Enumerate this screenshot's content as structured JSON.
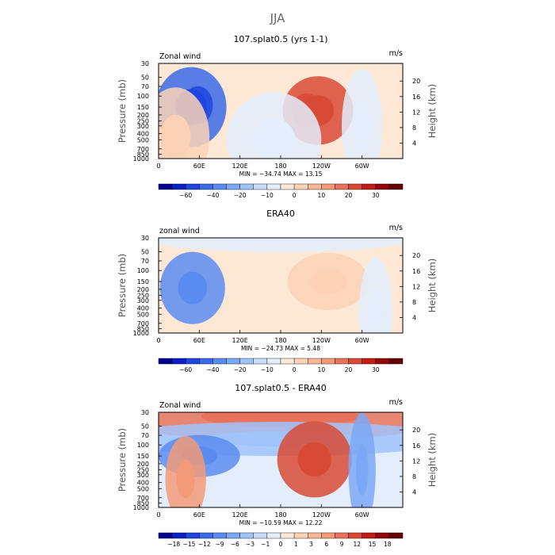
{
  "title": "JJA",
  "colors": {
    "levels": [
      "#00008f",
      "#0a1fc4",
      "#2045e0",
      "#3b6ae8",
      "#5a8cf0",
      "#7ba8f5",
      "#a0c3fa",
      "#c8ddfb",
      "#e3edfb",
      "#fde8d6",
      "#fbd2b6",
      "#f8b898",
      "#f29a78",
      "#e8735a",
      "#d84a35",
      "#c01e15",
      "#900808",
      "#660000"
    ]
  },
  "chart_data": [
    {
      "type": "heatmap",
      "title": "107.splat0.5 (yrs 1-1)",
      "variable": "Zonal wind",
      "units": "m/s",
      "ylabel": "Pressure (mb)",
      "y2label": "Height (km)",
      "x_ticks": [
        "0",
        "60E",
        "120E",
        "180",
        "120W",
        "60W"
      ],
      "y_ticks": [
        "30",
        "50",
        "70",
        "100",
        "150",
        "200",
        "250",
        "300",
        "400",
        "500",
        "700",
        "850",
        "1000"
      ],
      "y2_ticks": [
        "20",
        "16",
        "12",
        "8",
        "4"
      ],
      "min_max": "MIN = −34.74   MAX =  13.15",
      "colorbar_ticks": [
        "−60",
        "−40",
        "−20",
        "−10",
        "0",
        "10",
        "20",
        "30"
      ],
      "background_level": 9,
      "features": [
        {
          "lon": 48,
          "p": 150,
          "rx": 52,
          "ry": 0.42,
          "min": 3,
          "core": 2
        },
        {
          "lon": 58,
          "p": 140,
          "rx": 22,
          "ry": 0.2,
          "min": 2,
          "core": 2
        },
        {
          "lon": 235,
          "p": 170,
          "rx": 52,
          "ry": 0.36,
          "min": 14,
          "core": 14
        },
        {
          "lon": 218,
          "p": 170,
          "rx": 22,
          "ry": 0.18,
          "min": 14,
          "core": 14
        },
        {
          "lon": 25,
          "p": 450,
          "rx": 50,
          "ry": 0.52,
          "min": 10,
          "core": 10
        },
        {
          "lon": 170,
          "p": 500,
          "rx": 70,
          "ry": 0.5,
          "min": 8,
          "core": 8
        },
        {
          "lon": 300,
          "p": 300,
          "rx": 30,
          "ry": 0.6,
          "min": 8,
          "core": 8
        }
      ]
    },
    {
      "type": "heatmap",
      "title": "ERA40",
      "variable": "zonal wind",
      "units": "m/s",
      "ylabel": "Pressure (mb)",
      "y2label": "Height (km)",
      "x_ticks": [
        "0",
        "60E",
        "120E",
        "180",
        "120W",
        "60W"
      ],
      "y_ticks": [
        "30",
        "50",
        "70",
        "100",
        "150",
        "200",
        "250",
        "300",
        "400",
        "500",
        "700",
        "850",
        "1000"
      ],
      "y2_ticks": [
        "20",
        "16",
        "12",
        "8",
        "4"
      ],
      "min_max": "MIN = −24.73   MAX =   5.48",
      "colorbar_ticks": [
        "−60",
        "−40",
        "−20",
        "−10",
        "0",
        "10",
        "20",
        "30"
      ],
      "background_level": 9,
      "features": [
        {
          "lon": 50,
          "p": 190,
          "rx": 48,
          "ry": 0.38,
          "min": 4,
          "core": 4
        },
        {
          "lon": 180,
          "p": 30,
          "rx": 200,
          "ry": 0.15,
          "min": 8,
          "core": 8
        },
        {
          "lon": 250,
          "p": 150,
          "rx": 60,
          "ry": 0.3,
          "min": 10,
          "core": 10
        },
        {
          "lon": 320,
          "p": 500,
          "rx": 25,
          "ry": 0.6,
          "min": 8,
          "core": 8
        }
      ]
    },
    {
      "type": "heatmap",
      "title": "107.splat0.5 - ERA40",
      "variable": "Zonal wind",
      "units": "m/s",
      "ylabel": "Pressure (mb)",
      "y2label": "Height (km)",
      "x_ticks": [
        "0",
        "60E",
        "120E",
        "180",
        "120W",
        "60W"
      ],
      "y_ticks": [
        "30",
        "50",
        "70",
        "100",
        "150",
        "200",
        "250",
        "300",
        "400",
        "500",
        "700",
        "850",
        "1000"
      ],
      "y2_ticks": [
        "20",
        "16",
        "12",
        "8",
        "4"
      ],
      "min_max": "MIN = −10.59   MAX =  12.22",
      "colorbar_ticks": [
        "−18",
        "−15",
        "−12",
        "−9",
        "−6",
        "−3",
        "−1",
        "0",
        "1",
        "3",
        "6",
        "9",
        "12",
        "15",
        "18"
      ],
      "background_level": 8,
      "features": [
        {
          "lon": 180,
          "p": 35,
          "rx": 260,
          "ry": 0.25,
          "min": 13,
          "core": 13
        },
        {
          "lon": 180,
          "p": 80,
          "rx": 260,
          "ry": 0.18,
          "min": 6,
          "core": 6
        },
        {
          "lon": 230,
          "p": 170,
          "rx": 55,
          "ry": 0.4,
          "min": 14,
          "core": 14
        },
        {
          "lon": 60,
          "p": 150,
          "rx": 60,
          "ry": 0.22,
          "min": 4,
          "core": 4
        },
        {
          "lon": 40,
          "p": 350,
          "rx": 30,
          "ry": 0.45,
          "min": 12,
          "core": 12
        },
        {
          "lon": 300,
          "p": 250,
          "rx": 20,
          "ry": 0.6,
          "min": 5,
          "core": 5
        }
      ]
    }
  ]
}
